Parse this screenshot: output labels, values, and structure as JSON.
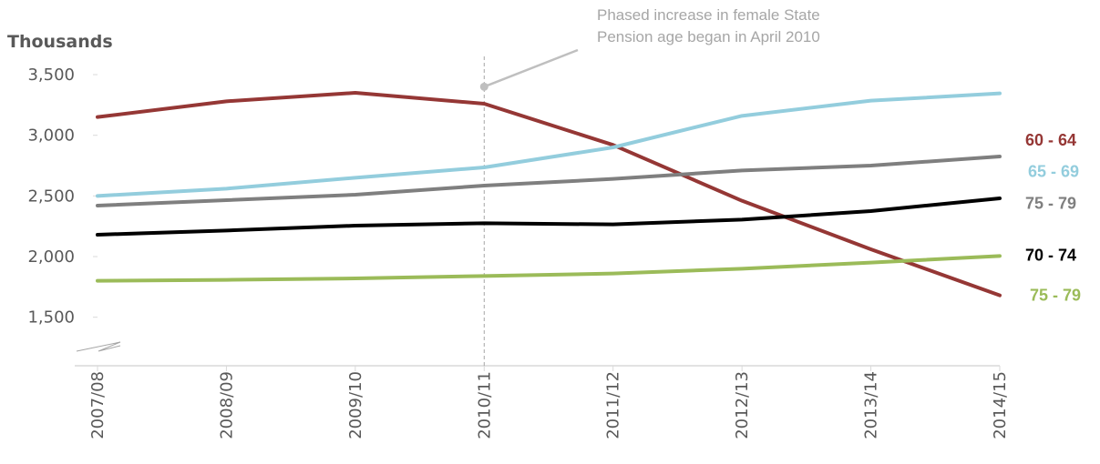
{
  "chart_data": {
    "type": "line",
    "ylabel": "Thousands",
    "ylim": [
      1100,
      3500
    ],
    "yticks": [
      1500,
      2000,
      2500,
      3000,
      3500
    ],
    "ytick_labels": [
      "1,500",
      "2,000",
      "2,500",
      "3,000",
      "3,500"
    ],
    "y_axis_break": true,
    "categories": [
      "2007/08",
      "2008/09",
      "2009/10",
      "2010/11",
      "2011/12",
      "2012/13",
      "2013/14",
      "2014/15"
    ],
    "series": [
      {
        "name": "60 - 64",
        "color": "#953735",
        "values": [
          3150,
          3280,
          3350,
          3260,
          2920,
          2460,
          2060,
          1680
        ]
      },
      {
        "name": "65 - 69",
        "color": "#93cddd",
        "values": [
          2500,
          2560,
          2650,
          2735,
          2900,
          3160,
          3285,
          3345
        ]
      },
      {
        "name": "75 - 79",
        "color": "#7f7f7f",
        "values": [
          2420,
          2465,
          2510,
          2585,
          2640,
          2710,
          2750,
          2825
        ]
      },
      {
        "name": "70 - 74",
        "color": "#000000",
        "values": [
          2180,
          2215,
          2255,
          2275,
          2265,
          2305,
          2375,
          2480
        ]
      },
      {
        "name": "75 - 79",
        "color": "#9bbb59",
        "values": [
          1800,
          1808,
          1820,
          1840,
          1860,
          1900,
          1950,
          2005
        ]
      }
    ],
    "annotation": {
      "lines": [
        "Phased increase in female State",
        "Pension age began in April 2010"
      ],
      "category": "2010/11",
      "point_y": 3400
    }
  }
}
